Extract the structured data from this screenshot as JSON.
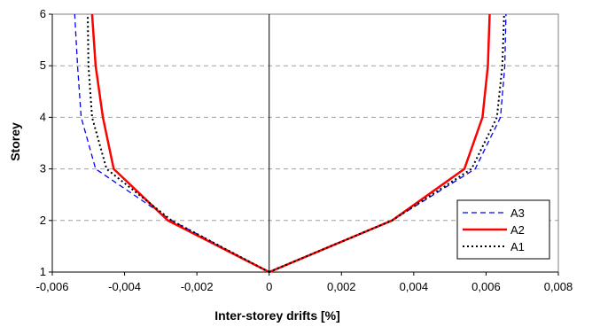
{
  "chart_data": {
    "type": "line",
    "title": "",
    "xlabel": "Inter-storey drifts [%]",
    "ylabel": "Storey",
    "xlim": [
      -0.006,
      0.008
    ],
    "ylim": [
      1,
      6
    ],
    "x_ticks": [
      "-0,006",
      "-0,004",
      "-0,002",
      "0",
      "0,002",
      "0,004",
      "0,006",
      "0,008"
    ],
    "y_ticks": [
      "1",
      "2",
      "3",
      "4",
      "5",
      "6"
    ],
    "grid": "horizontal-dashed",
    "legend_position": "bottom-right",
    "series": [
      {
        "name": "A3",
        "color": "#0000ff",
        "style": "dashed",
        "branches": [
          {
            "x": [
              0,
              -0.0027,
              -0.0048,
              -0.0052,
              -0.0053,
              -0.00538
            ],
            "y": [
              1,
              2,
              3,
              4,
              5,
              6
            ]
          },
          {
            "x": [
              0,
              0.0034,
              0.0057,
              0.0064,
              0.00652,
              0.00655
            ],
            "y": [
              1,
              2,
              3,
              4,
              5,
              6
            ]
          }
        ]
      },
      {
        "name": "A2",
        "color": "#ff0000",
        "style": "solid",
        "branches": [
          {
            "x": [
              0,
              -0.0028,
              -0.0043,
              -0.0046,
              -0.0048,
              -0.0049
            ],
            "y": [
              1,
              2,
              3,
              4,
              5,
              6
            ]
          },
          {
            "x": [
              0,
              0.0034,
              0.0054,
              0.0059,
              0.00605,
              0.0061
            ],
            "y": [
              1,
              2,
              3,
              4,
              5,
              6
            ]
          }
        ]
      },
      {
        "name": "A1",
        "color": "#000000",
        "style": "dotted",
        "branches": [
          {
            "x": [
              0,
              -0.0027,
              -0.0045,
              -0.0049,
              -0.005,
              -0.00502
            ],
            "y": [
              1,
              2,
              3,
              4,
              5,
              6
            ]
          },
          {
            "x": [
              0,
              0.0034,
              0.0056,
              0.0063,
              0.00645,
              0.0065
            ],
            "y": [
              1,
              2,
              3,
              4,
              5,
              6
            ]
          }
        ]
      }
    ]
  }
}
